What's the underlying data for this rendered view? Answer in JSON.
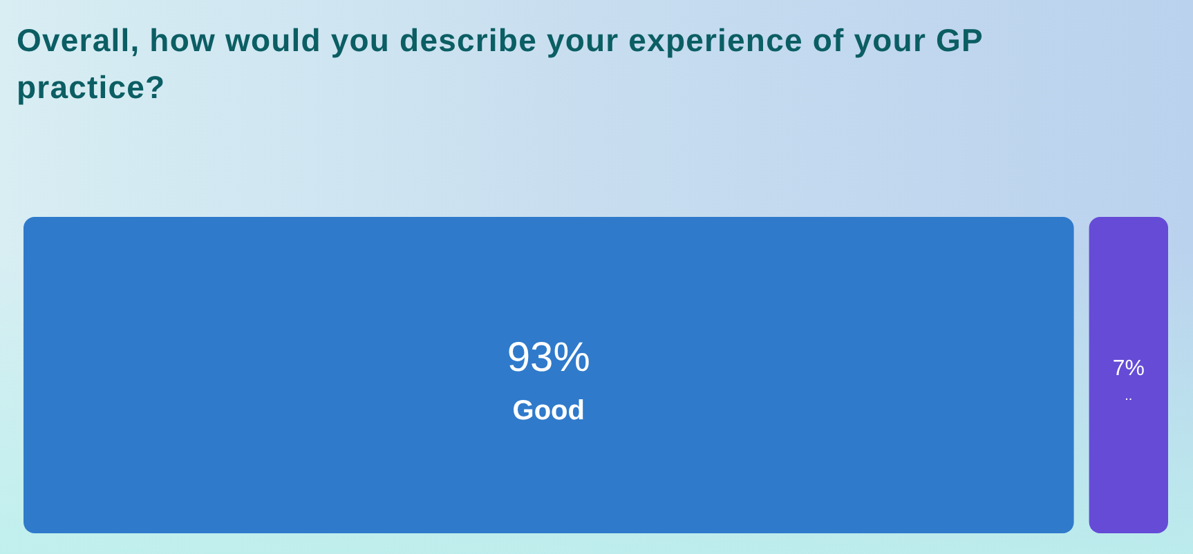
{
  "chart_data": {
    "type": "other",
    "title": "Overall, how would you describe your experience of your GP practice?",
    "categories": [
      "Good",
      ".."
    ],
    "values": [
      93,
      7
    ],
    "colors": [
      "#2f7acb",
      "#654bd6"
    ],
    "value_labels": [
      "93%",
      "7%"
    ]
  }
}
